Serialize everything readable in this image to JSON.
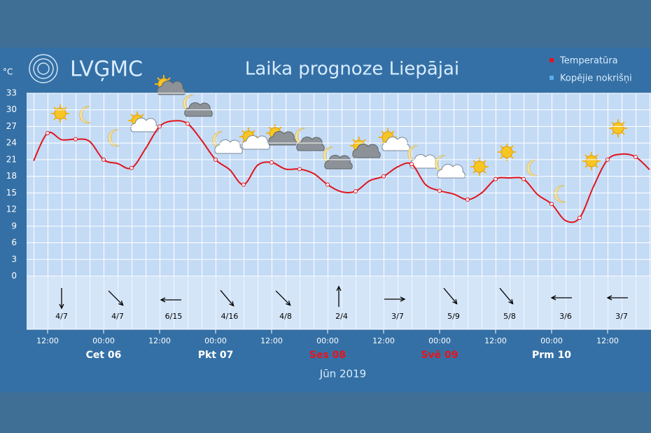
{
  "chart_data": {
    "type": "line",
    "title": "Laika prognoze Liepājai",
    "logo": "LVĢMC",
    "y_label": "°C",
    "x_label": "Jūn 2019",
    "x": [
      -15,
      -12,
      -9,
      -6,
      -3,
      0,
      3,
      6,
      9,
      12,
      15,
      18,
      21,
      24,
      27,
      30,
      33,
      36,
      39,
      42,
      45,
      48,
      51,
      54,
      57,
      60,
      63,
      66,
      69,
      72,
      75,
      78,
      81,
      84,
      87,
      90,
      93,
      96,
      99,
      102,
      105,
      108,
      111,
      114,
      117
    ],
    "series": [
      {
        "name": "Temperatūra",
        "color": "#e0151d",
        "values": [
          20.8,
          25.8,
          24.6,
          24.7,
          24.3,
          21,
          20.3,
          19.5,
          23,
          27,
          28,
          27.5,
          24.5,
          21,
          19.2,
          16.5,
          20,
          20.5,
          19.3,
          19.3,
          18.5,
          16.5,
          15.2,
          15.3,
          17.2,
          18,
          19.7,
          20.2,
          16.5,
          15.4,
          14.8,
          13.8,
          15,
          17.5,
          17.7,
          17.5,
          14.7,
          13,
          10,
          10.5,
          16.2,
          21,
          22,
          21.5,
          19.2
        ]
      }
    ],
    "precipitation": {
      "name": "Kopējie nokrišņi",
      "color": "#5aaee8"
    },
    "xlim": [
      -16.5,
      117.3
    ],
    "ylim": [
      0,
      33
    ],
    "yticks": [
      0,
      3,
      6,
      9,
      12,
      15,
      18,
      21,
      24,
      27,
      30,
      33
    ],
    "xticks": [
      {
        "value": -12,
        "label": "12:00"
      },
      {
        "value": 0,
        "label": "00:00"
      },
      {
        "value": 12,
        "label": "12:00"
      },
      {
        "value": 24,
        "label": "00:00"
      },
      {
        "value": 36,
        "label": "12:00"
      },
      {
        "value": 48,
        "label": "00:00"
      },
      {
        "value": 60,
        "label": "12:00"
      },
      {
        "value": 72,
        "label": "00:00"
      },
      {
        "value": 84,
        "label": "12:00"
      },
      {
        "value": 96,
        "label": "00:00"
      },
      {
        "value": 108,
        "label": "12:00"
      }
    ],
    "days": [
      {
        "value": 0,
        "label": "Cet 06",
        "color": "#ffffff"
      },
      {
        "value": 24,
        "label": "Pkt 07",
        "color": "#ffffff"
      },
      {
        "value": 48,
        "label": "Ses 08",
        "color": "#e8141c"
      },
      {
        "value": 72,
        "label": "Svē 09",
        "color": "#e8141c"
      },
      {
        "value": 96,
        "label": "Prm 10",
        "color": "#ffffff"
      }
    ],
    "wind": {
      "x": [
        -9,
        3,
        15,
        27,
        39,
        51,
        63,
        75,
        87,
        99,
        111
      ],
      "labels": [
        "4/7",
        "4/7",
        "6/15",
        "4/16",
        "4/8",
        "2/4",
        "3/7",
        "5/9",
        "5/8",
        "3/6",
        "3/7"
      ]
    },
    "grid": true
  }
}
